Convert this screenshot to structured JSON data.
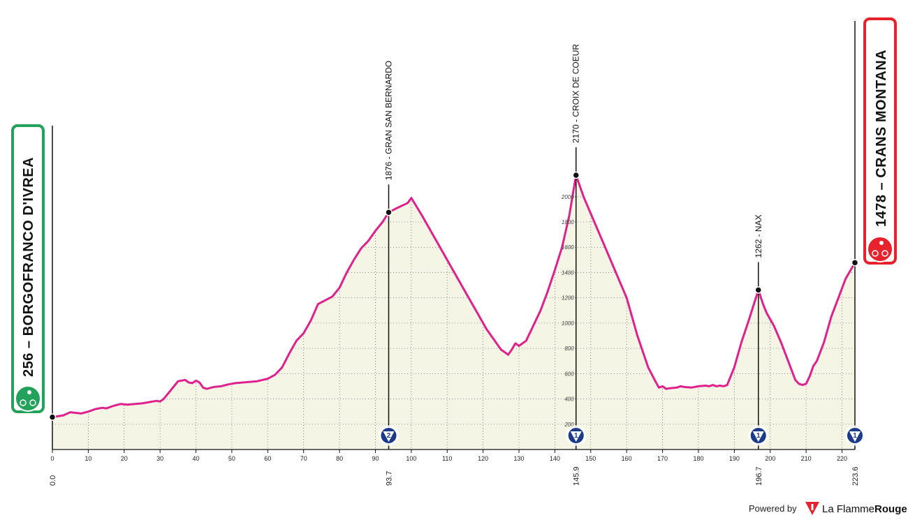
{
  "chart_data": {
    "type": "area",
    "xlim": [
      0,
      223.6
    ],
    "ylim": [
      0,
      2170
    ],
    "x_ticks": [
      0,
      10,
      20,
      30,
      40,
      50,
      60,
      70,
      80,
      90,
      100,
      110,
      120,
      130,
      140,
      150,
      160,
      170,
      180,
      190,
      200,
      210,
      220
    ],
    "y_ticks": [
      200,
      400,
      600,
      800,
      1000,
      1200,
      1400,
      1600,
      1800,
      2000
    ],
    "profile": {
      "x": [
        0,
        3,
        5,
        8,
        10,
        12,
        14,
        15,
        17,
        19,
        21,
        23,
        25,
        27,
        29,
        30,
        31,
        33,
        35,
        37,
        38,
        39,
        40,
        41,
        42,
        43,
        45,
        47,
        49,
        51,
        53,
        55,
        57,
        60,
        62,
        64,
        66,
        68,
        70,
        72,
        74,
        76,
        78,
        80,
        82,
        84,
        86,
        88,
        90,
        92,
        93.7,
        96,
        99,
        100,
        103,
        106,
        109,
        112,
        115,
        118,
        121,
        123,
        124,
        125,
        126,
        127,
        128,
        129,
        130,
        131,
        132,
        134,
        136,
        138,
        140,
        142,
        144,
        145.9,
        148,
        151,
        154,
        157,
        160,
        163,
        166,
        168,
        169,
        170,
        171,
        172,
        174,
        175,
        176,
        178,
        180,
        182,
        183,
        184,
        185,
        186,
        187,
        188,
        190,
        192,
        194,
        196.7,
        198,
        199,
        201,
        203,
        205,
        207,
        208,
        209,
        210,
        211,
        212,
        213,
        215,
        217,
        219,
        221,
        223.6
      ],
      "y": [
        256,
        270,
        295,
        285,
        300,
        320,
        330,
        325,
        345,
        360,
        355,
        360,
        365,
        375,
        385,
        380,
        400,
        470,
        540,
        550,
        530,
        525,
        545,
        530,
        490,
        480,
        495,
        500,
        515,
        525,
        530,
        535,
        540,
        560,
        590,
        650,
        760,
        860,
        920,
        1020,
        1150,
        1180,
        1210,
        1280,
        1400,
        1500,
        1590,
        1650,
        1730,
        1800,
        1876,
        1910,
        1950,
        1990,
        1850,
        1700,
        1550,
        1400,
        1250,
        1100,
        950,
        870,
        830,
        790,
        770,
        750,
        790,
        840,
        820,
        840,
        860,
        980,
        1100,
        1250,
        1420,
        1600,
        1850,
        2170,
        2000,
        1800,
        1600,
        1400,
        1200,
        900,
        650,
        540,
        490,
        500,
        480,
        485,
        490,
        500,
        495,
        490,
        500,
        505,
        500,
        510,
        500,
        505,
        500,
        510,
        650,
        850,
        1020,
        1262,
        1150,
        1080,
        980,
        850,
        700,
        550,
        520,
        510,
        520,
        580,
        660,
        700,
        850,
        1050,
        1200,
        1350,
        1478
      ]
    },
    "distance_markers": [
      {
        "km_label": "0.0",
        "x": 0,
        "elevation": 256
      },
      {
        "km_label": "93.7",
        "x": 93.7,
        "elevation": 1876
      },
      {
        "km_label": "145.9",
        "x": 145.9,
        "elevation": 2170
      },
      {
        "km_label": "196.7",
        "x": 196.7,
        "elevation": 1262
      },
      {
        "km_label": "223.6",
        "x": 223.6,
        "elevation": 1478
      }
    ],
    "climbs": [
      {
        "label": "1876 - GRAN SAN BERNARDO",
        "x": 93.7,
        "elevation": 1876,
        "category": "2"
      },
      {
        "label": "2170 - CROIX DE COEUR",
        "x": 145.9,
        "elevation": 2170,
        "category": "1"
      },
      {
        "label": "1262 - NAX",
        "x": 196.7,
        "elevation": 1262,
        "category": "1"
      },
      {
        "x": 223.6,
        "elevation": 1478,
        "category": "1"
      }
    ],
    "start": {
      "label": "256 – BORGOFRANCO D'IVREA",
      "color": "#22a25a"
    },
    "finish": {
      "label": "1478 – CRANS MONTANA",
      "color": "#e8222c"
    },
    "colors": {
      "profile_line": "#e0208c",
      "profile_fill": "#f5f5e6",
      "grid": "#777777",
      "badge": "#1b3a8a"
    },
    "grid": true
  },
  "footer": {
    "powered_by": "Powered by",
    "brand_plain": "La Flamme",
    "brand_bold": "Rouge"
  }
}
